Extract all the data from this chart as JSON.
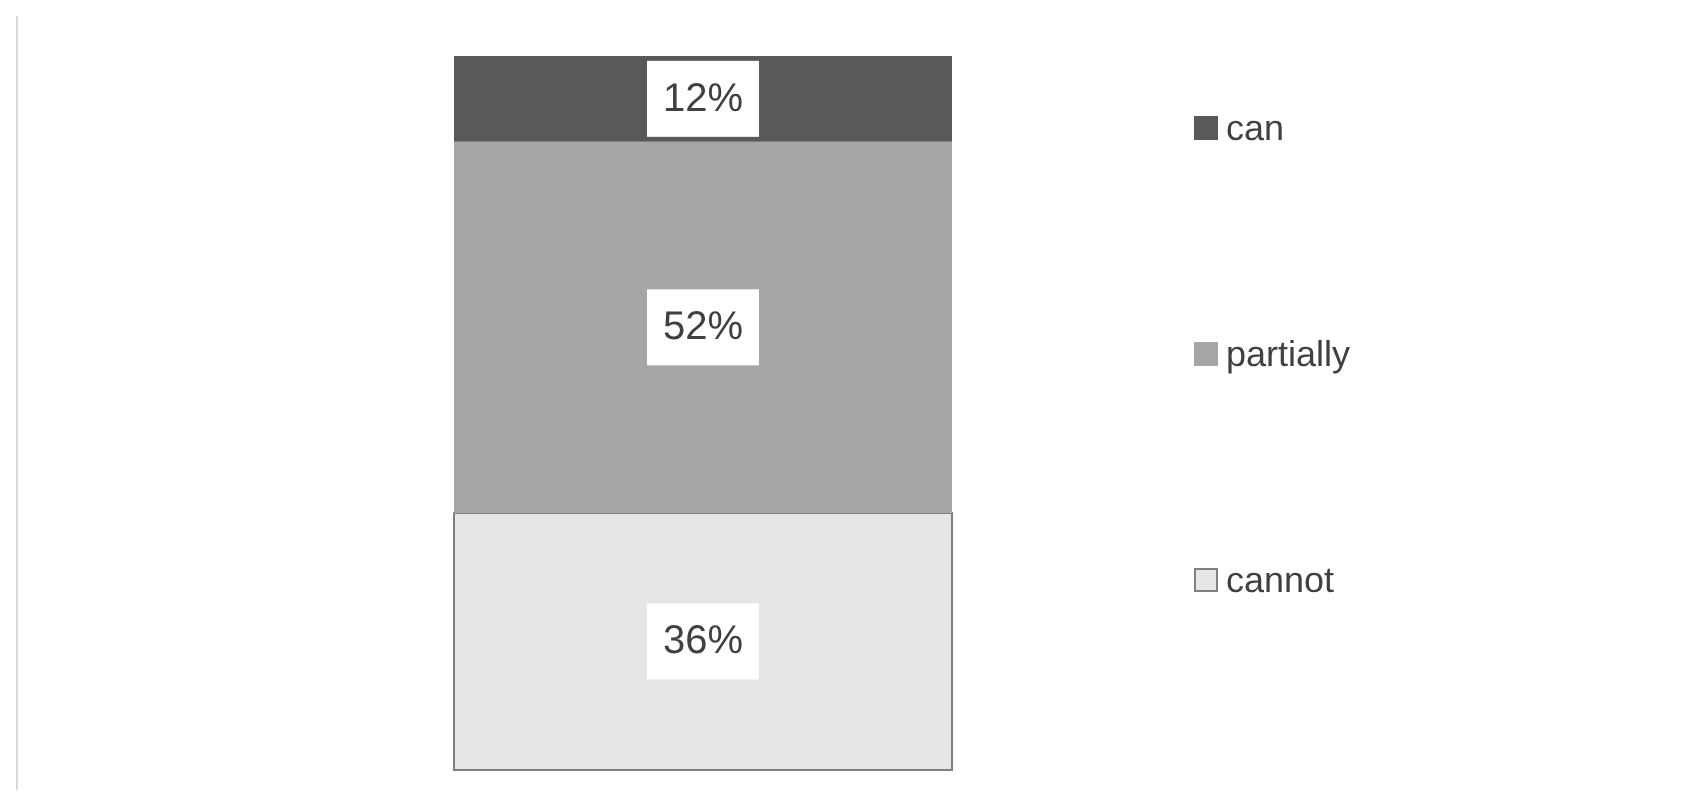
{
  "chart_data": {
    "type": "bar",
    "stacked": true,
    "categories": [
      null
    ],
    "legend": "right",
    "series": [
      {
        "name": "cannot",
        "color": "#e7e6e6",
        "values": [
          36
        ],
        "value_labels": [
          "36%"
        ]
      },
      {
        "name": "partially",
        "color": "#a6a6a6",
        "values": [
          52
        ],
        "value_labels": [
          "52%"
        ]
      },
      {
        "name": "can",
        "color": "#595959",
        "values": [
          12
        ],
        "value_labels": [
          "12%"
        ]
      }
    ]
  }
}
